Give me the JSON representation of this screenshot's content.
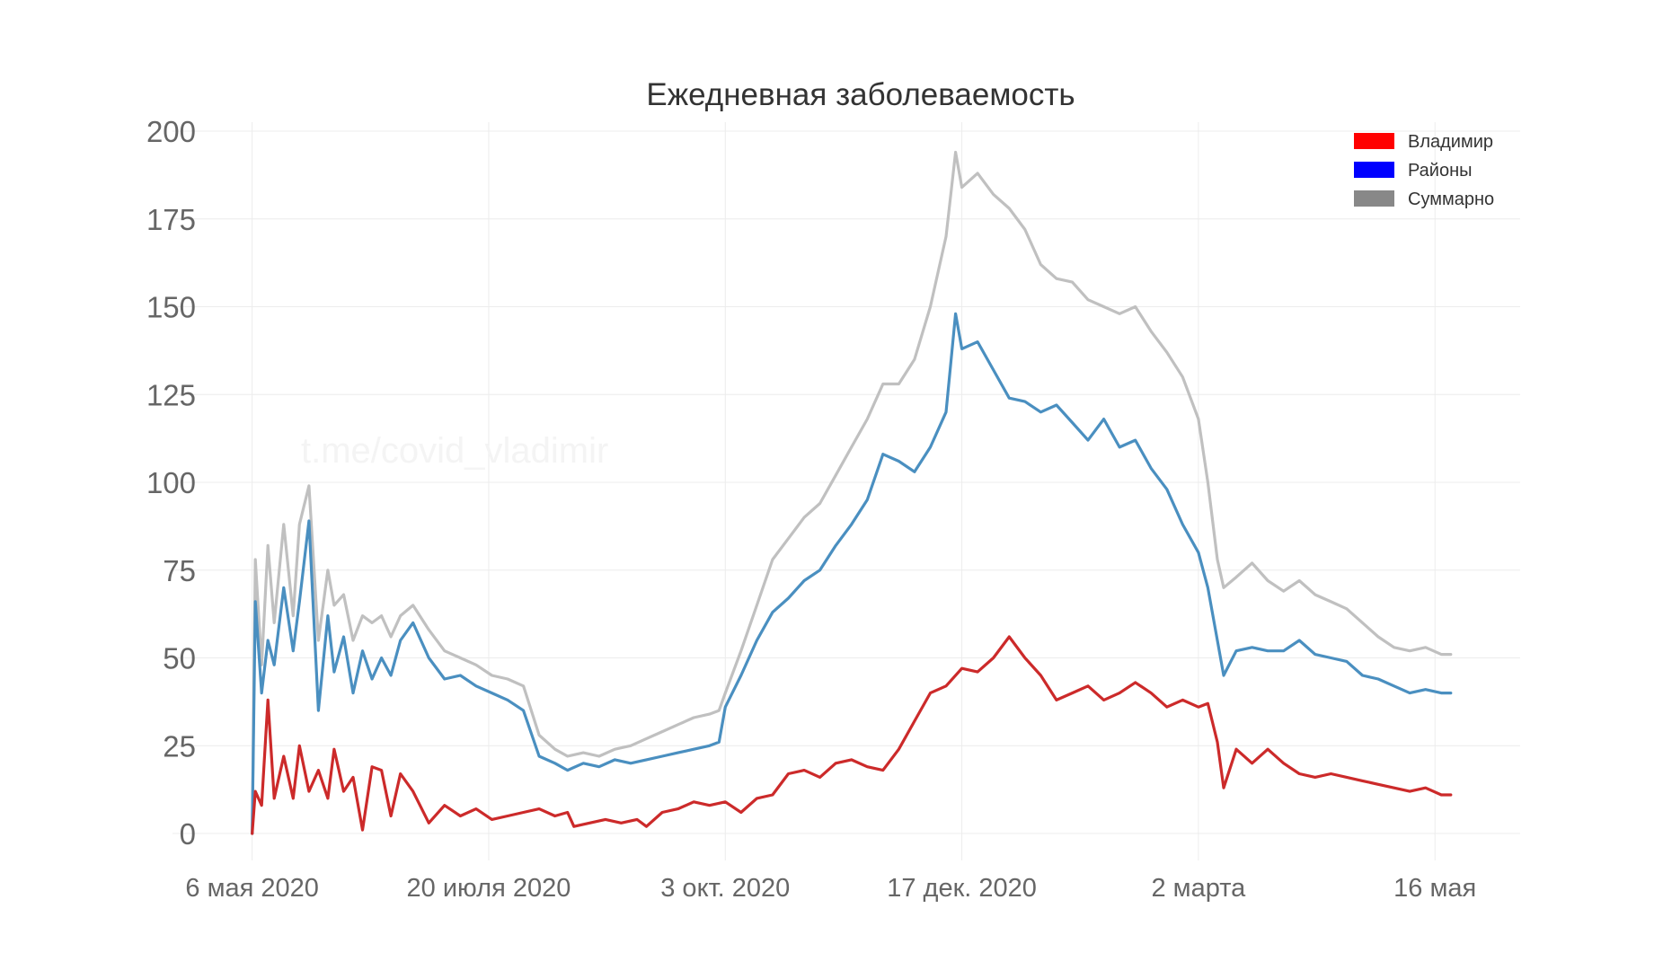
{
  "chart_data": {
    "type": "line",
    "title": "Ежедневная заболеваемость",
    "xlabel": "",
    "ylabel": "",
    "ylim": [
      0,
      200
    ],
    "yticks": [
      0,
      25,
      50,
      75,
      100,
      125,
      150,
      175,
      200
    ],
    "xlim": [
      "2020-04-21",
      "2021-06-12"
    ],
    "xticks": [
      {
        "date": "2020-05-06",
        "label": "6 мая 2020"
      },
      {
        "date": "2020-07-20",
        "label": "20 июля 2020"
      },
      {
        "date": "2020-10-03",
        "label": "3 окт. 2020"
      },
      {
        "date": "2020-12-17",
        "label": "17 дек. 2020"
      },
      {
        "date": "2021-03-02",
        "label": "2 марта"
      },
      {
        "date": "2021-05-16",
        "label": "16 мая"
      }
    ],
    "grid": true,
    "legend_position": "top-right",
    "watermark": "t.me/covid_vladimir",
    "series": [
      {
        "name": "Владимир",
        "color": "#cc2a2a",
        "legend_color": "#ff0000",
        "points": [
          [
            "2020-05-06",
            0
          ],
          [
            "2020-05-07",
            12
          ],
          [
            "2020-05-09",
            8
          ],
          [
            "2020-05-11",
            38
          ],
          [
            "2020-05-13",
            10
          ],
          [
            "2020-05-16",
            22
          ],
          [
            "2020-05-19",
            10
          ],
          [
            "2020-05-21",
            25
          ],
          [
            "2020-05-24",
            12
          ],
          [
            "2020-05-27",
            18
          ],
          [
            "2020-05-30",
            10
          ],
          [
            "2020-06-01",
            24
          ],
          [
            "2020-06-04",
            12
          ],
          [
            "2020-06-07",
            16
          ],
          [
            "2020-06-10",
            1
          ],
          [
            "2020-06-13",
            19
          ],
          [
            "2020-06-16",
            18
          ],
          [
            "2020-06-19",
            5
          ],
          [
            "2020-06-22",
            17
          ],
          [
            "2020-06-26",
            12
          ],
          [
            "2020-07-01",
            3
          ],
          [
            "2020-07-06",
            8
          ],
          [
            "2020-07-11",
            5
          ],
          [
            "2020-07-16",
            7
          ],
          [
            "2020-07-21",
            4
          ],
          [
            "2020-07-26",
            5
          ],
          [
            "2020-07-31",
            6
          ],
          [
            "2020-08-05",
            7
          ],
          [
            "2020-08-10",
            5
          ],
          [
            "2020-08-14",
            6
          ],
          [
            "2020-08-16",
            2
          ],
          [
            "2020-08-21",
            3
          ],
          [
            "2020-08-26",
            4
          ],
          [
            "2020-08-31",
            3
          ],
          [
            "2020-09-05",
            4
          ],
          [
            "2020-09-08",
            2
          ],
          [
            "2020-09-13",
            6
          ],
          [
            "2020-09-18",
            7
          ],
          [
            "2020-09-23",
            9
          ],
          [
            "2020-09-28",
            8
          ],
          [
            "2020-10-03",
            9
          ],
          [
            "2020-10-08",
            6
          ],
          [
            "2020-10-13",
            10
          ],
          [
            "2020-10-18",
            11
          ],
          [
            "2020-10-23",
            17
          ],
          [
            "2020-10-28",
            18
          ],
          [
            "2020-11-02",
            16
          ],
          [
            "2020-11-07",
            20
          ],
          [
            "2020-11-12",
            21
          ],
          [
            "2020-11-17",
            19
          ],
          [
            "2020-11-22",
            18
          ],
          [
            "2020-11-27",
            24
          ],
          [
            "2020-12-02",
            32
          ],
          [
            "2020-12-07",
            40
          ],
          [
            "2020-12-12",
            42
          ],
          [
            "2020-12-17",
            47
          ],
          [
            "2020-12-22",
            46
          ],
          [
            "2020-12-27",
            50
          ],
          [
            "2021-01-01",
            56
          ],
          [
            "2021-01-06",
            50
          ],
          [
            "2021-01-11",
            45
          ],
          [
            "2021-01-16",
            38
          ],
          [
            "2021-01-21",
            40
          ],
          [
            "2021-01-26",
            42
          ],
          [
            "2021-01-31",
            38
          ],
          [
            "2021-02-05",
            40
          ],
          [
            "2021-02-10",
            43
          ],
          [
            "2021-02-15",
            40
          ],
          [
            "2021-02-20",
            36
          ],
          [
            "2021-02-25",
            38
          ],
          [
            "2021-03-02",
            36
          ],
          [
            "2021-03-05",
            37
          ],
          [
            "2021-03-08",
            26
          ],
          [
            "2021-03-10",
            13
          ],
          [
            "2021-03-14",
            24
          ],
          [
            "2021-03-19",
            20
          ],
          [
            "2021-03-24",
            24
          ],
          [
            "2021-03-29",
            20
          ],
          [
            "2021-04-03",
            17
          ],
          [
            "2021-04-08",
            16
          ],
          [
            "2021-04-13",
            17
          ],
          [
            "2021-04-18",
            16
          ],
          [
            "2021-04-23",
            15
          ],
          [
            "2021-04-28",
            14
          ],
          [
            "2021-05-03",
            13
          ],
          [
            "2021-05-08",
            12
          ],
          [
            "2021-05-13",
            13
          ],
          [
            "2021-05-18",
            11
          ],
          [
            "2021-05-21",
            11
          ]
        ]
      },
      {
        "name": "Районы",
        "color": "#4a8fc0",
        "legend_color": "#0000ff",
        "points": [
          [
            "2020-05-06",
            0
          ],
          [
            "2020-05-07",
            66
          ],
          [
            "2020-05-09",
            40
          ],
          [
            "2020-05-11",
            55
          ],
          [
            "2020-05-13",
            48
          ],
          [
            "2020-05-16",
            70
          ],
          [
            "2020-05-19",
            52
          ],
          [
            "2020-05-21",
            66
          ],
          [
            "2020-05-24",
            89
          ],
          [
            "2020-05-27",
            35
          ],
          [
            "2020-05-30",
            62
          ],
          [
            "2020-06-01",
            46
          ],
          [
            "2020-06-04",
            56
          ],
          [
            "2020-06-07",
            40
          ],
          [
            "2020-06-10",
            52
          ],
          [
            "2020-06-13",
            44
          ],
          [
            "2020-06-16",
            50
          ],
          [
            "2020-06-19",
            45
          ],
          [
            "2020-06-22",
            55
          ],
          [
            "2020-06-26",
            60
          ],
          [
            "2020-07-01",
            50
          ],
          [
            "2020-07-06",
            44
          ],
          [
            "2020-07-11",
            45
          ],
          [
            "2020-07-16",
            42
          ],
          [
            "2020-07-21",
            40
          ],
          [
            "2020-07-26",
            38
          ],
          [
            "2020-07-31",
            35
          ],
          [
            "2020-08-05",
            22
          ],
          [
            "2020-08-10",
            20
          ],
          [
            "2020-08-14",
            18
          ],
          [
            "2020-08-19",
            20
          ],
          [
            "2020-08-24",
            19
          ],
          [
            "2020-08-29",
            21
          ],
          [
            "2020-09-03",
            20
          ],
          [
            "2020-09-08",
            21
          ],
          [
            "2020-09-13",
            22
          ],
          [
            "2020-09-18",
            23
          ],
          [
            "2020-09-23",
            24
          ],
          [
            "2020-09-28",
            25
          ],
          [
            "2020-10-01",
            26
          ],
          [
            "2020-10-03",
            36
          ],
          [
            "2020-10-08",
            45
          ],
          [
            "2020-10-13",
            55
          ],
          [
            "2020-10-18",
            63
          ],
          [
            "2020-10-23",
            67
          ],
          [
            "2020-10-28",
            72
          ],
          [
            "2020-11-02",
            75
          ],
          [
            "2020-11-07",
            82
          ],
          [
            "2020-11-12",
            88
          ],
          [
            "2020-11-17",
            95
          ],
          [
            "2020-11-22",
            108
          ],
          [
            "2020-11-27",
            106
          ],
          [
            "2020-12-02",
            103
          ],
          [
            "2020-12-07",
            110
          ],
          [
            "2020-12-12",
            120
          ],
          [
            "2020-12-15",
            148
          ],
          [
            "2020-12-17",
            138
          ],
          [
            "2020-12-22",
            140
          ],
          [
            "2020-12-27",
            132
          ],
          [
            "2021-01-01",
            124
          ],
          [
            "2021-01-06",
            123
          ],
          [
            "2021-01-11",
            120
          ],
          [
            "2021-01-16",
            122
          ],
          [
            "2021-01-21",
            117
          ],
          [
            "2021-01-26",
            112
          ],
          [
            "2021-01-31",
            118
          ],
          [
            "2021-02-05",
            110
          ],
          [
            "2021-02-10",
            112
          ],
          [
            "2021-02-15",
            104
          ],
          [
            "2021-02-20",
            98
          ],
          [
            "2021-02-25",
            88
          ],
          [
            "2021-03-02",
            80
          ],
          [
            "2021-03-05",
            70
          ],
          [
            "2021-03-08",
            55
          ],
          [
            "2021-03-10",
            45
          ],
          [
            "2021-03-14",
            52
          ],
          [
            "2021-03-19",
            53
          ],
          [
            "2021-03-24",
            52
          ],
          [
            "2021-03-29",
            52
          ],
          [
            "2021-04-03",
            55
          ],
          [
            "2021-04-08",
            51
          ],
          [
            "2021-04-13",
            50
          ],
          [
            "2021-04-18",
            49
          ],
          [
            "2021-04-23",
            45
          ],
          [
            "2021-04-28",
            44
          ],
          [
            "2021-05-03",
            42
          ],
          [
            "2021-05-08",
            40
          ],
          [
            "2021-05-13",
            41
          ],
          [
            "2021-05-18",
            40
          ],
          [
            "2021-05-21",
            40
          ]
        ]
      },
      {
        "name": "Суммарно",
        "color": "#c0c0c0",
        "legend_color": "#888888",
        "points": [
          [
            "2020-05-06",
            0
          ],
          [
            "2020-05-07",
            78
          ],
          [
            "2020-05-09",
            48
          ],
          [
            "2020-05-11",
            82
          ],
          [
            "2020-05-13",
            60
          ],
          [
            "2020-05-16",
            88
          ],
          [
            "2020-05-19",
            62
          ],
          [
            "2020-05-21",
            88
          ],
          [
            "2020-05-24",
            99
          ],
          [
            "2020-05-27",
            55
          ],
          [
            "2020-05-30",
            75
          ],
          [
            "2020-06-01",
            65
          ],
          [
            "2020-06-04",
            68
          ],
          [
            "2020-06-07",
            55
          ],
          [
            "2020-06-10",
            62
          ],
          [
            "2020-06-13",
            60
          ],
          [
            "2020-06-16",
            62
          ],
          [
            "2020-06-19",
            56
          ],
          [
            "2020-06-22",
            62
          ],
          [
            "2020-06-26",
            65
          ],
          [
            "2020-07-01",
            58
          ],
          [
            "2020-07-06",
            52
          ],
          [
            "2020-07-11",
            50
          ],
          [
            "2020-07-16",
            48
          ],
          [
            "2020-07-21",
            45
          ],
          [
            "2020-07-26",
            44
          ],
          [
            "2020-07-31",
            42
          ],
          [
            "2020-08-05",
            28
          ],
          [
            "2020-08-10",
            24
          ],
          [
            "2020-08-14",
            22
          ],
          [
            "2020-08-19",
            23
          ],
          [
            "2020-08-24",
            22
          ],
          [
            "2020-08-29",
            24
          ],
          [
            "2020-09-03",
            25
          ],
          [
            "2020-09-08",
            27
          ],
          [
            "2020-09-13",
            29
          ],
          [
            "2020-09-18",
            31
          ],
          [
            "2020-09-23",
            33
          ],
          [
            "2020-09-28",
            34
          ],
          [
            "2020-10-01",
            35
          ],
          [
            "2020-10-03",
            40
          ],
          [
            "2020-10-08",
            52
          ],
          [
            "2020-10-13",
            65
          ],
          [
            "2020-10-18",
            78
          ],
          [
            "2020-10-23",
            84
          ],
          [
            "2020-10-28",
            90
          ],
          [
            "2020-11-02",
            94
          ],
          [
            "2020-11-07",
            102
          ],
          [
            "2020-11-12",
            110
          ],
          [
            "2020-11-17",
            118
          ],
          [
            "2020-11-22",
            128
          ],
          [
            "2020-11-27",
            128
          ],
          [
            "2020-12-02",
            135
          ],
          [
            "2020-12-07",
            150
          ],
          [
            "2020-12-12",
            170
          ],
          [
            "2020-12-15",
            194
          ],
          [
            "2020-12-17",
            184
          ],
          [
            "2020-12-22",
            188
          ],
          [
            "2020-12-27",
            182
          ],
          [
            "2021-01-01",
            178
          ],
          [
            "2021-01-06",
            172
          ],
          [
            "2021-01-11",
            162
          ],
          [
            "2021-01-16",
            158
          ],
          [
            "2021-01-21",
            157
          ],
          [
            "2021-01-26",
            152
          ],
          [
            "2021-01-31",
            150
          ],
          [
            "2021-02-05",
            148
          ],
          [
            "2021-02-10",
            150
          ],
          [
            "2021-02-15",
            143
          ],
          [
            "2021-02-20",
            137
          ],
          [
            "2021-02-25",
            130
          ],
          [
            "2021-03-02",
            118
          ],
          [
            "2021-03-05",
            100
          ],
          [
            "2021-03-08",
            78
          ],
          [
            "2021-03-10",
            70
          ],
          [
            "2021-03-14",
            73
          ],
          [
            "2021-03-19",
            77
          ],
          [
            "2021-03-24",
            72
          ],
          [
            "2021-03-29",
            69
          ],
          [
            "2021-04-03",
            72
          ],
          [
            "2021-04-08",
            68
          ],
          [
            "2021-04-13",
            66
          ],
          [
            "2021-04-18",
            64
          ],
          [
            "2021-04-23",
            60
          ],
          [
            "2021-04-28",
            56
          ],
          [
            "2021-05-03",
            53
          ],
          [
            "2021-05-08",
            52
          ],
          [
            "2021-05-13",
            53
          ],
          [
            "2021-05-18",
            51
          ],
          [
            "2021-05-21",
            51
          ]
        ]
      }
    ]
  }
}
